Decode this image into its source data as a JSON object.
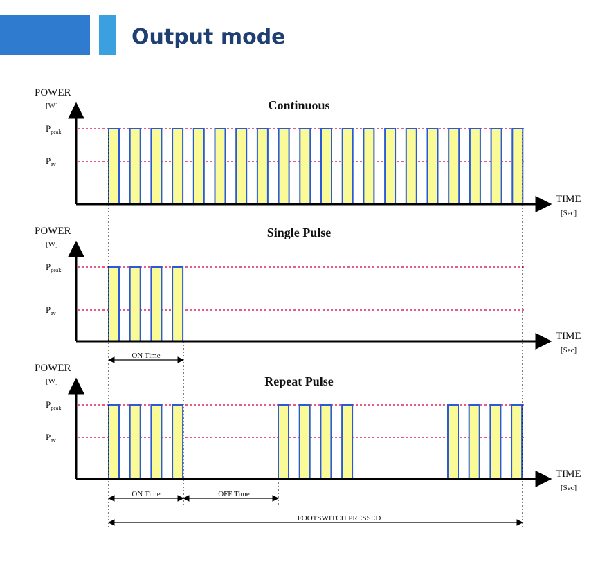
{
  "header": {
    "title": "Output mode"
  },
  "panels": [
    {
      "title": "Continuous",
      "y_label": "POWER",
      "y_unit": "[W]",
      "peak_label": {
        "main": "P",
        "sub": "peak"
      },
      "avg_label": {
        "main": "P",
        "sub": "av"
      },
      "x_label": "TIME",
      "x_unit": "[Sec]"
    },
    {
      "title": "Single Pulse",
      "y_label": "POWER",
      "y_unit": "[W]",
      "peak_label": {
        "main": "P",
        "sub": "peak"
      },
      "avg_label": {
        "main": "P",
        "sub": "av"
      },
      "x_label": "TIME",
      "x_unit": "[Sec]",
      "annotations": [
        "ON Time"
      ]
    },
    {
      "title": "Repeat Pulse",
      "y_label": "POWER",
      "y_unit": "[W]",
      "peak_label": {
        "main": "P",
        "sub": "peak"
      },
      "avg_label": {
        "main": "P",
        "sub": "av"
      },
      "x_label": "TIME",
      "x_unit": "[Sec]",
      "annotations": [
        "ON Time",
        "OFF Time",
        "FOOTSWITCH PRESSED"
      ]
    }
  ]
}
